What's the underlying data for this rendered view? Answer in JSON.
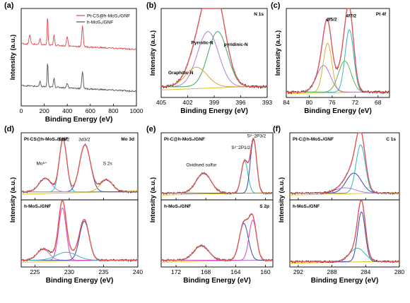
{
  "chart_data": [
    {
      "id": "a",
      "type": "line",
      "panel_label": "(a)",
      "xlabel": "Binding Energy (eV)",
      "ylabel": "Intensity (a.u.)",
      "xlim": [
        0,
        1000
      ],
      "xticks": [
        "0",
        "200",
        "400",
        "600",
        "800",
        "1000"
      ],
      "legend_position": "top-right",
      "series": [
        {
          "name": "Pt-CS@h-MoS₂/GNF",
          "color": "#e0474c",
          "offset": 0.58,
          "peaks": [
            [
              75,
              0.1,
              6
            ],
            [
              163,
              0.06,
              5
            ],
            [
              229,
              0.3,
              4
            ],
            [
              285,
              0.12,
              5
            ],
            [
              399,
              0.1,
              6
            ],
            [
              532,
              0.22,
              6
            ]
          ]
        },
        {
          "name": "h-MoS₂/GNF",
          "color": "#555555",
          "offset": 0.15,
          "peaks": [
            [
              163,
              0.05,
              5
            ],
            [
              229,
              0.26,
              4
            ],
            [
              285,
              0.1,
              5
            ],
            [
              399,
              0.05,
              6
            ],
            [
              532,
              0.18,
              6
            ]
          ]
        }
      ]
    },
    {
      "id": "b",
      "type": "line",
      "panel_label": "(b)",
      "xlabel": "Binding Energy (eV)",
      "ylabel": "Intensity (a.u.)",
      "xlim": [
        405,
        393
      ],
      "xticks": [
        "405",
        "402",
        "399",
        "396",
        "393"
      ],
      "title": "N 1s",
      "annotations": [
        {
          "text": "Pyrrolic-N",
          "x": 401.6,
          "y": 0.6,
          "color": "#7a2a8c"
        },
        {
          "text": "pyridinic-N",
          "x": 397.9,
          "y": 0.58,
          "color": "#2a8a3a"
        },
        {
          "text": "Graphitic-N",
          "x": 404.2,
          "y": 0.26,
          "color": "#e08a2a"
        }
      ],
      "components": [
        {
          "name": "Pyrrolic-N",
          "center": 399.7,
          "amp": 0.62,
          "width": 1.2,
          "color": "#b07fd0"
        },
        {
          "name": "pyridinic-N",
          "center": 398.6,
          "amp": 0.62,
          "width": 1.1,
          "color": "#3aa860"
        },
        {
          "name": "Graphitic-N",
          "center": 401.0,
          "amp": 0.22,
          "width": 1.2,
          "color": "#e0a030"
        }
      ],
      "baseline": 0.12,
      "envelope_color": "#e05a5a"
    },
    {
      "id": "c",
      "type": "line",
      "panel_label": "(c)",
      "xlabel": "Binding Energy (eV)",
      "ylabel": "Intensity (a.u.)",
      "xlim": [
        84,
        66
      ],
      "xticks": [
        "84",
        "80",
        "76",
        "72",
        "68"
      ],
      "title": "Pt 4f",
      "annotations": [
        {
          "text": "4f5/2",
          "x": 77.0,
          "y": 0.86
        },
        {
          "text": "4f7/2",
          "x": 73.6,
          "y": 0.9
        }
      ],
      "components": [
        {
          "center": 76.8,
          "amp": 0.55,
          "width": 0.75,
          "color": "#e0b030"
        },
        {
          "center": 77.5,
          "amp": 0.3,
          "width": 1.2,
          "color": "#b07fd0"
        },
        {
          "center": 73.0,
          "amp": 0.7,
          "width": 0.75,
          "color": "#30b8c0"
        },
        {
          "center": 73.8,
          "amp": 0.35,
          "width": 1.1,
          "color": "#6ab04c"
        }
      ],
      "baseline": 0.06,
      "envelope_color": "#e05a5a"
    },
    {
      "id": "d",
      "type": "line",
      "panel_label": "(d)",
      "xlabel": "Binding Energy (eV)",
      "ylabel": "Intensity (a.u.)",
      "xlim": [
        223,
        240
      ],
      "xticks": [
        "225",
        "230",
        "235",
        "240"
      ],
      "subpanels": [
        {
          "label": "Pt-CS@h-MoS₂/GNF",
          "title": "Mo 3d",
          "annotations": [
            {
              "text": "Mo⁶⁺",
              "x": 226.0,
              "y": 0.52
            },
            {
              "text": "3d5/2",
              "x": 229.2,
              "y": 0.88
            },
            {
              "text": "3d3/2",
              "x": 232.2,
              "y": 0.88
            },
            {
              "text": "S 2s",
              "x": 235.6,
              "y": 0.52
            }
          ],
          "components": [
            {
              "center": 226.5,
              "amp": 0.2,
              "width": 0.9,
              "color": "#b07fd0"
            },
            {
              "center": 229.1,
              "amp": 0.78,
              "width": 0.55,
              "color": "#30b8c0"
            },
            {
              "center": 232.3,
              "amp": 0.7,
              "width": 0.8,
              "color": "#3a4ab0"
            },
            {
              "center": 235.4,
              "amp": 0.18,
              "width": 0.9,
              "color": "#e0b030"
            }
          ],
          "baseline": 0.12
        },
        {
          "label": "h-MoS₂/GNF",
          "components": [
            {
              "center": 226.2,
              "amp": 0.16,
              "width": 0.9,
              "color": "#b07fd0"
            },
            {
              "center": 229.0,
              "amp": 0.78,
              "width": 0.55,
              "color": "#e040c0"
            },
            {
              "center": 232.2,
              "amp": 0.58,
              "width": 0.7,
              "color": "#3a4ab0"
            },
            {
              "center": 229.6,
              "amp": 0.12,
              "width": 1.5,
              "color": "#30b8c0"
            }
          ],
          "baseline": 0.1
        }
      ],
      "envelope_color": "#e05a5a"
    },
    {
      "id": "e",
      "type": "line",
      "panel_label": "(e)",
      "xlabel": "Binding Energy (eV)",
      "ylabel": "Intensity (a.u.)",
      "xlim": [
        174,
        159
      ],
      "xticks": [
        "172",
        "168",
        "164",
        "160"
      ],
      "subpanels": [
        {
          "label": "Pt-C@h-MoS₂/GNF",
          "annotations": [
            {
              "text": "Oxidised sulfur",
              "x": 168.6,
              "y": 0.5
            },
            {
              "text": "S²⁻2P1/2",
              "x": 163.3,
              "y": 0.76
            },
            {
              "text": "S²⁻2P3/2",
              "x": 161.2,
              "y": 0.93
            }
          ],
          "components": [
            {
              "center": 168.3,
              "amp": 0.3,
              "width": 1.0,
              "color": "#b07fd0"
            },
            {
              "center": 162.8,
              "amp": 0.48,
              "width": 0.45,
              "color": "#30b8c0"
            },
            {
              "center": 161.6,
              "amp": 0.8,
              "width": 0.42,
              "color": "#3a4ab0"
            }
          ],
          "baseline": 0.1
        },
        {
          "label": "h-MoS₂/GNF",
          "title": "S 2p",
          "components": [
            {
              "center": 168.6,
              "amp": 0.22,
              "width": 1.0,
              "color": "#b07fd0"
            },
            {
              "center": 162.9,
              "amp": 0.55,
              "width": 0.6,
              "color": "#3a4ab0"
            },
            {
              "center": 161.7,
              "amp": 0.6,
              "width": 0.5,
              "color": "#e040c0"
            }
          ],
          "baseline": 0.1
        }
      ],
      "envelope_color": "#e05a5a"
    },
    {
      "id": "f",
      "type": "line",
      "panel_label": "(f)",
      "xlabel": "Binding Energy (eV)",
      "ylabel": "Intensity (a.u.)",
      "xlim": [
        293,
        280
      ],
      "xticks": [
        "292",
        "288",
        "284",
        "280"
      ],
      "subpanels": [
        {
          "label": "Pt-C@h-MoS₂/GNF",
          "title": "C 1s",
          "components": [
            {
              "center": 284.6,
              "amp": 0.72,
              "width": 0.55,
              "color": "#30b8c0"
            },
            {
              "center": 285.4,
              "amp": 0.3,
              "width": 0.9,
              "color": "#3a4ab0"
            },
            {
              "center": 286.4,
              "amp": 0.08,
              "width": 1.2,
              "color": "#b07fd0"
            }
          ],
          "baseline": 0.1
        },
        {
          "label": "h-MoS₂/GNF",
          "components": [
            {
              "center": 284.5,
              "amp": 0.74,
              "width": 0.45,
              "color": "#3a4ab0"
            },
            {
              "center": 285.0,
              "amp": 0.2,
              "width": 0.9,
              "color": "#30b8c0"
            }
          ],
          "baseline": 0.08
        }
      ],
      "envelope_color": "#e05a5a"
    }
  ]
}
